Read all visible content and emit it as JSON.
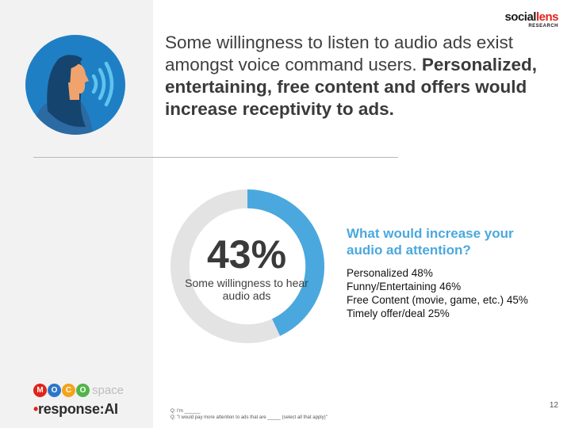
{
  "brand": {
    "name_main": "social",
    "name_accent": "lens",
    "name_sub": "RESEARCH"
  },
  "headline": {
    "lead": "Some willingness to listen to audio ads exist amongst voice command users.",
    "emphasis": "Personalized, entertaining, free content and offers would increase receptivity to ads."
  },
  "stat": {
    "value": "43%",
    "label": "Some willingness to hear audio ads",
    "fraction": 0.43
  },
  "question": "What would increase your audio ad attention?",
  "answers": [
    "Personalized 48%",
    "Funny/Entertaining 46%",
    "Free Content (movie, game, etc.) 45%",
    "Timely offer/deal 25%"
  ],
  "logos": {
    "moco_letters": [
      "M",
      "O",
      "C",
      "O"
    ],
    "moco_suffix": "space",
    "response_mark": "•",
    "response_text": "response:AI"
  },
  "footnotes": [
    "Q: I'm ______",
    "Q: \"I would pay more attention to ads that are _____ (select all that apply)\""
  ],
  "page_number": "12",
  "colors": {
    "accent": "#4aa8de",
    "donut_track": "#e3e3e3",
    "icon_circle": "#1f7fc4",
    "icon_dark": "#15456e",
    "moco": [
      "#e2231a",
      "#2a77c9",
      "#f5a31a",
      "#53b447"
    ]
  },
  "icons": {
    "hero": "woman-speaking-icon",
    "sound_waves": "sound-waves-icon"
  }
}
